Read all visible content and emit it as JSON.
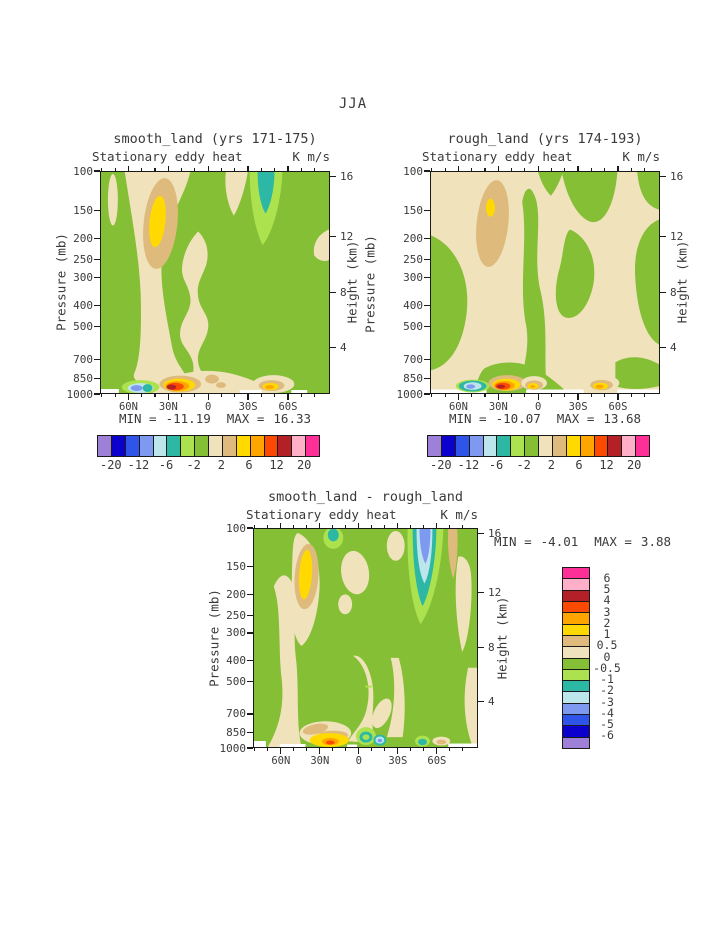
{
  "page": {
    "season_title": "JJA"
  },
  "ui": {
    "stats_min_label": "MIN =",
    "stats_max_label": "MAX ="
  },
  "colors": {
    "background": "#ffffff",
    "axis": "#1a1a1a",
    "text": "#3a3a3a",
    "plot_green": "#85bf36",
    "plot_beige": "#f0e3bc"
  },
  "chart_data": [
    {
      "type": "heatmap",
      "title": "smooth_land (yrs 171-175)",
      "subtitle": "Stationary eddy heat",
      "units": "K m/s",
      "x_ticks": [
        "60N",
        "30N",
        "0",
        "30S",
        "60S"
      ],
      "y_left": {
        "label": "Pressure (mb)",
        "scale": "log",
        "range": [
          100,
          1000
        ],
        "ticks": [
          100,
          150,
          200,
          250,
          300,
          400,
          500,
          700,
          850,
          1000
        ]
      },
      "y_right": {
        "label": "Height (km)",
        "ticks": [
          16,
          12,
          8,
          4
        ]
      },
      "min": -11.19,
      "max": 16.33,
      "level_labels": [
        -20,
        -12,
        -6,
        -2,
        2,
        6,
        12,
        20
      ],
      "legend_position": "below",
      "palette": [
        "#9f80d8",
        "#0b00cc",
        "#2e55e8",
        "#7e9af0",
        "#bce5ec",
        "#2db8a5",
        "#ade24f",
        "#85bf36",
        "#f0e3bc",
        "#debb7c",
        "#ffd900",
        "#ffa500",
        "#fd4a02",
        "#b32025",
        "#ffb0c8",
        "#fe3097"
      ]
    },
    {
      "type": "heatmap",
      "title": "rough_land (yrs 174-193)",
      "subtitle": "Stationary eddy heat",
      "units": "K m/s",
      "x_ticks": [
        "60N",
        "30N",
        "0",
        "30S",
        "60S"
      ],
      "y_left": {
        "label": "Pressure (mb)",
        "scale": "log",
        "range": [
          100,
          1000
        ],
        "ticks": [
          100,
          150,
          200,
          250,
          300,
          400,
          500,
          700,
          850,
          1000
        ]
      },
      "y_right": {
        "label": "Height (km)",
        "ticks": [
          16,
          12,
          8,
          4
        ]
      },
      "min": -10.07,
      "max": 13.68,
      "level_labels": [
        -20,
        -12,
        -6,
        -2,
        2,
        6,
        12,
        20
      ],
      "legend_position": "below",
      "palette": [
        "#9f80d8",
        "#0b00cc",
        "#2e55e8",
        "#7e9af0",
        "#bce5ec",
        "#2db8a5",
        "#ade24f",
        "#85bf36",
        "#f0e3bc",
        "#debb7c",
        "#ffd900",
        "#ffa500",
        "#fd4a02",
        "#b32025",
        "#ffb0c8",
        "#fe3097"
      ]
    },
    {
      "type": "heatmap",
      "title": "smooth_land - rough_land",
      "subtitle": "Stationary eddy heat",
      "units": "K m/s",
      "x_ticks": [
        "60N",
        "30N",
        "0",
        "30S",
        "60S"
      ],
      "y_left": {
        "label": "Pressure (mb)",
        "scale": "log",
        "range": [
          100,
          1000
        ],
        "ticks": [
          100,
          150,
          200,
          250,
          300,
          400,
          500,
          700,
          850,
          1000
        ]
      },
      "y_right": {
        "label": "Height (km)",
        "ticks": [
          16,
          12,
          8,
          4
        ]
      },
      "min": -4.01,
      "max": 3.88,
      "level_labels": [
        6,
        5,
        4,
        3,
        2,
        1,
        0.5,
        0,
        -0.5,
        -1,
        -2,
        -3,
        -4,
        -5,
        -6
      ],
      "legend_position": "right",
      "palette": [
        "#9f80d8",
        "#0b00cc",
        "#2e55e8",
        "#7e9af0",
        "#bce5ec",
        "#2db8a5",
        "#ade24f",
        "#85bf36",
        "#f0e3bc",
        "#debb7c",
        "#ffd900",
        "#ffa500",
        "#fd4a02",
        "#b32025",
        "#ffb0c8",
        "#fe3097"
      ]
    }
  ]
}
